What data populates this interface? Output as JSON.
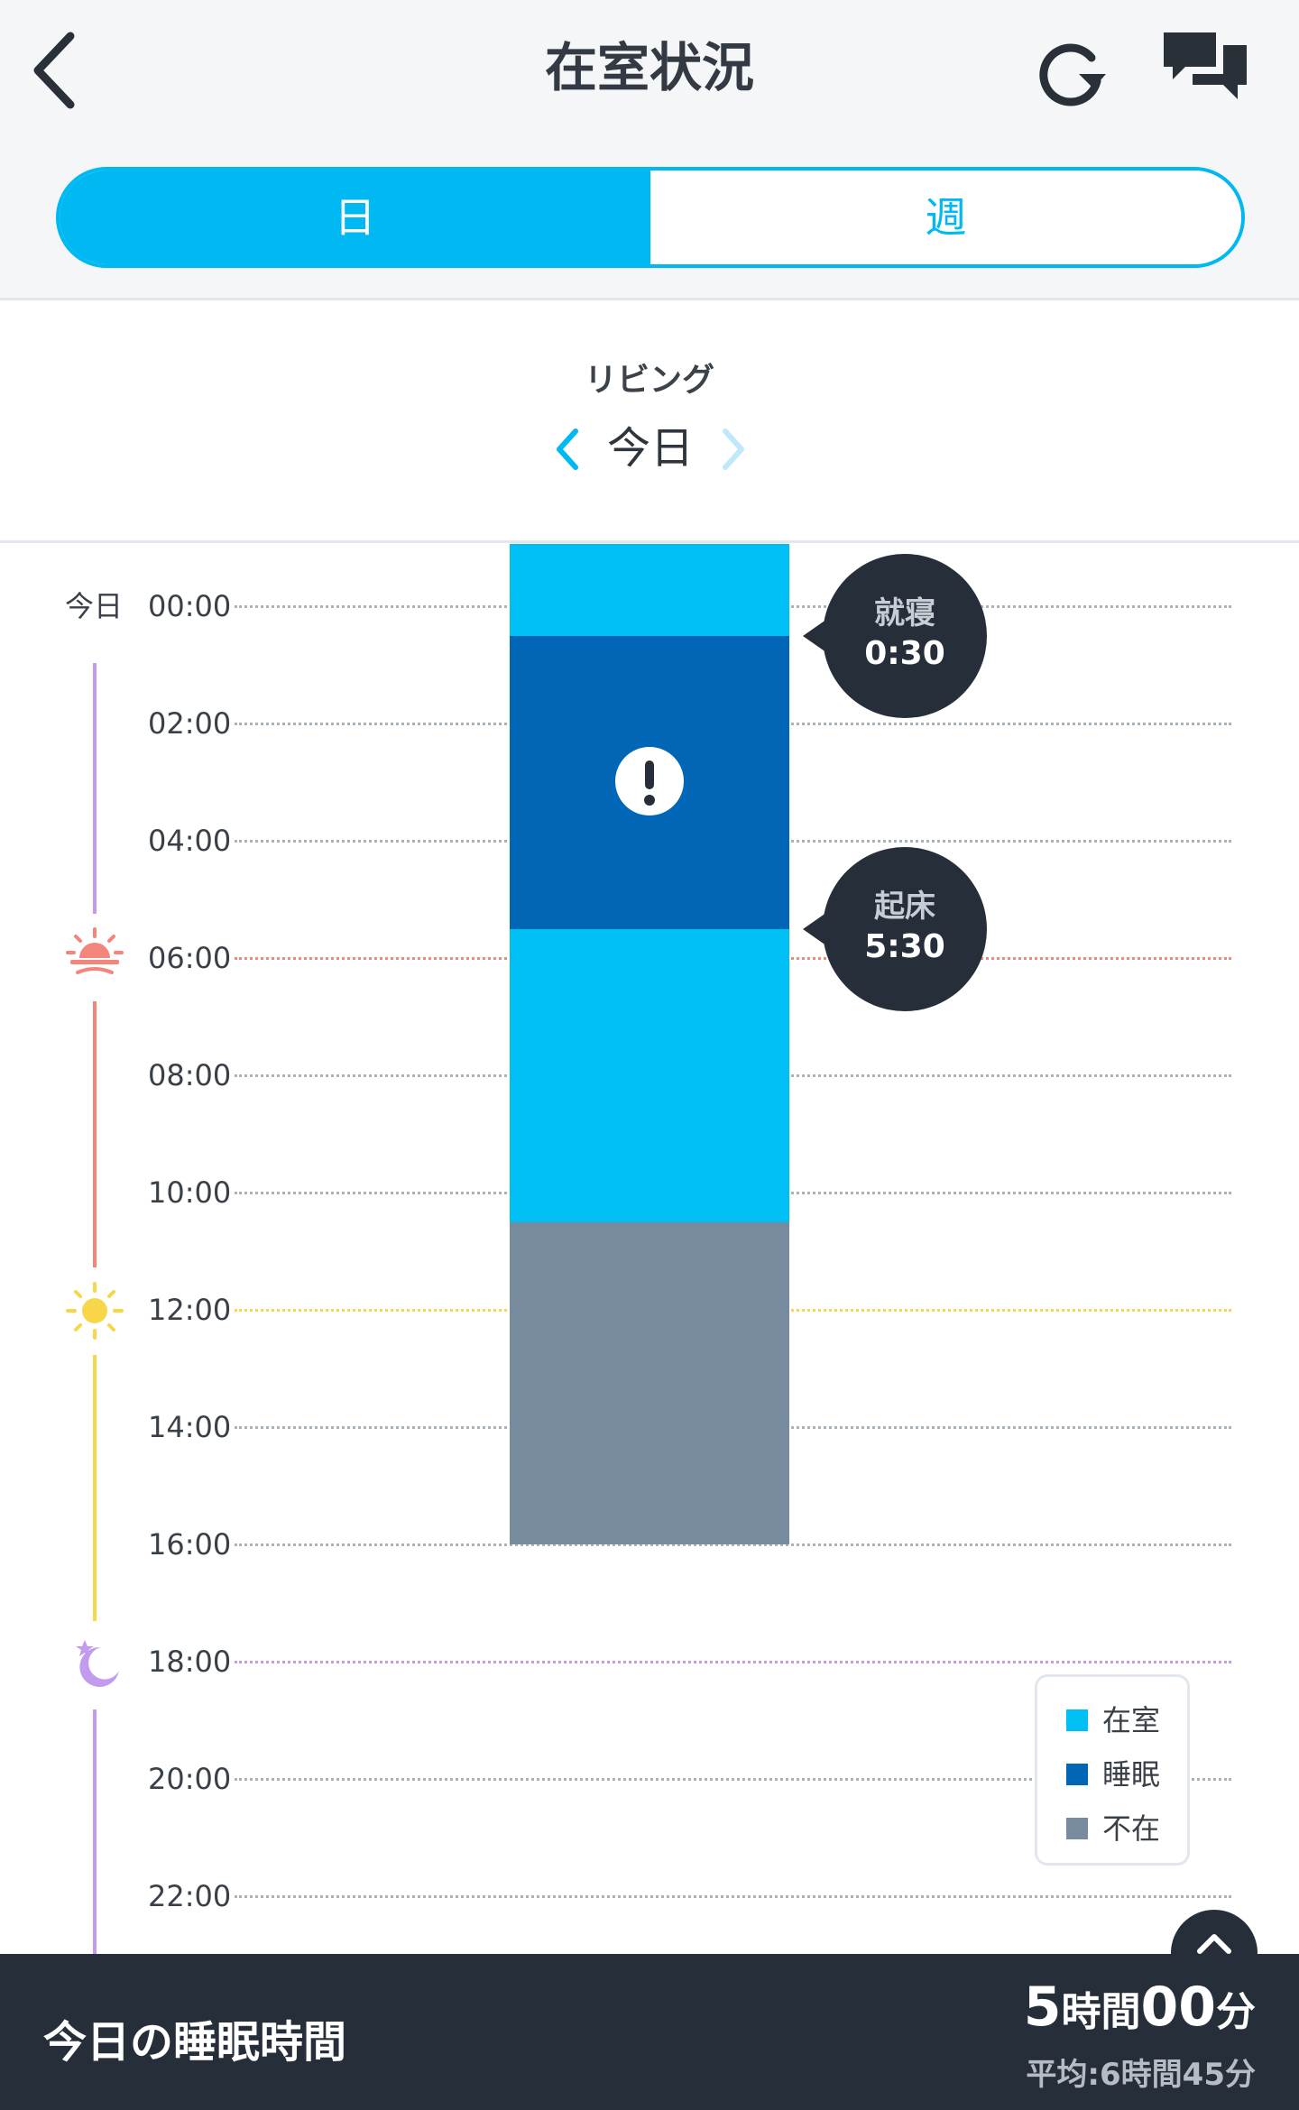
{
  "header": {
    "title": "在室状況",
    "tabs": [
      {
        "label": "日",
        "active": true
      },
      {
        "label": "週",
        "active": false
      }
    ]
  },
  "room": {
    "name": "リビング",
    "date_label": "今日"
  },
  "timeline": {
    "day_label": "今日",
    "hours": [
      "00:00",
      "02:00",
      "04:00",
      "06:00",
      "08:00",
      "10:00",
      "12:00",
      "14:00",
      "16:00",
      "18:00",
      "20:00",
      "22:00"
    ],
    "markers": {
      "sunrise": "06:00",
      "noon": "12:00",
      "sunset": "18:00"
    }
  },
  "presence": {
    "segments": [
      {
        "status": "在室",
        "start_hour": 0,
        "end_hour": 0.5
      },
      {
        "status": "睡眠",
        "start_hour": 0.5,
        "end_hour": 5.5
      },
      {
        "status": "在室",
        "start_hour": 5.5,
        "end_hour": 10.5
      },
      {
        "status": "不在",
        "start_hour": 10.5,
        "end_hour": 16
      }
    ],
    "alert_icon": "exclamation-icon",
    "bedtime": {
      "label": "就寝",
      "time": "0:30"
    },
    "wakeup": {
      "label": "起床",
      "time": "5:30"
    }
  },
  "legend": [
    {
      "label": "在室",
      "color": "#00bff5"
    },
    {
      "label": "睡眠",
      "color": "#0066b5"
    },
    {
      "label": "不在",
      "color": "#788b9e"
    }
  ],
  "colors": {
    "accent": "#00b9f2",
    "dark": "#262f39",
    "sunrise": "#f4857b",
    "noon": "#f8d64a",
    "sunset": "#c29af0"
  },
  "footer": {
    "title": "今日の睡眠時間",
    "hours": "5",
    "hours_unit": "時間",
    "minutes": "00",
    "minutes_unit": "分",
    "average": "平均:6時間45分"
  }
}
